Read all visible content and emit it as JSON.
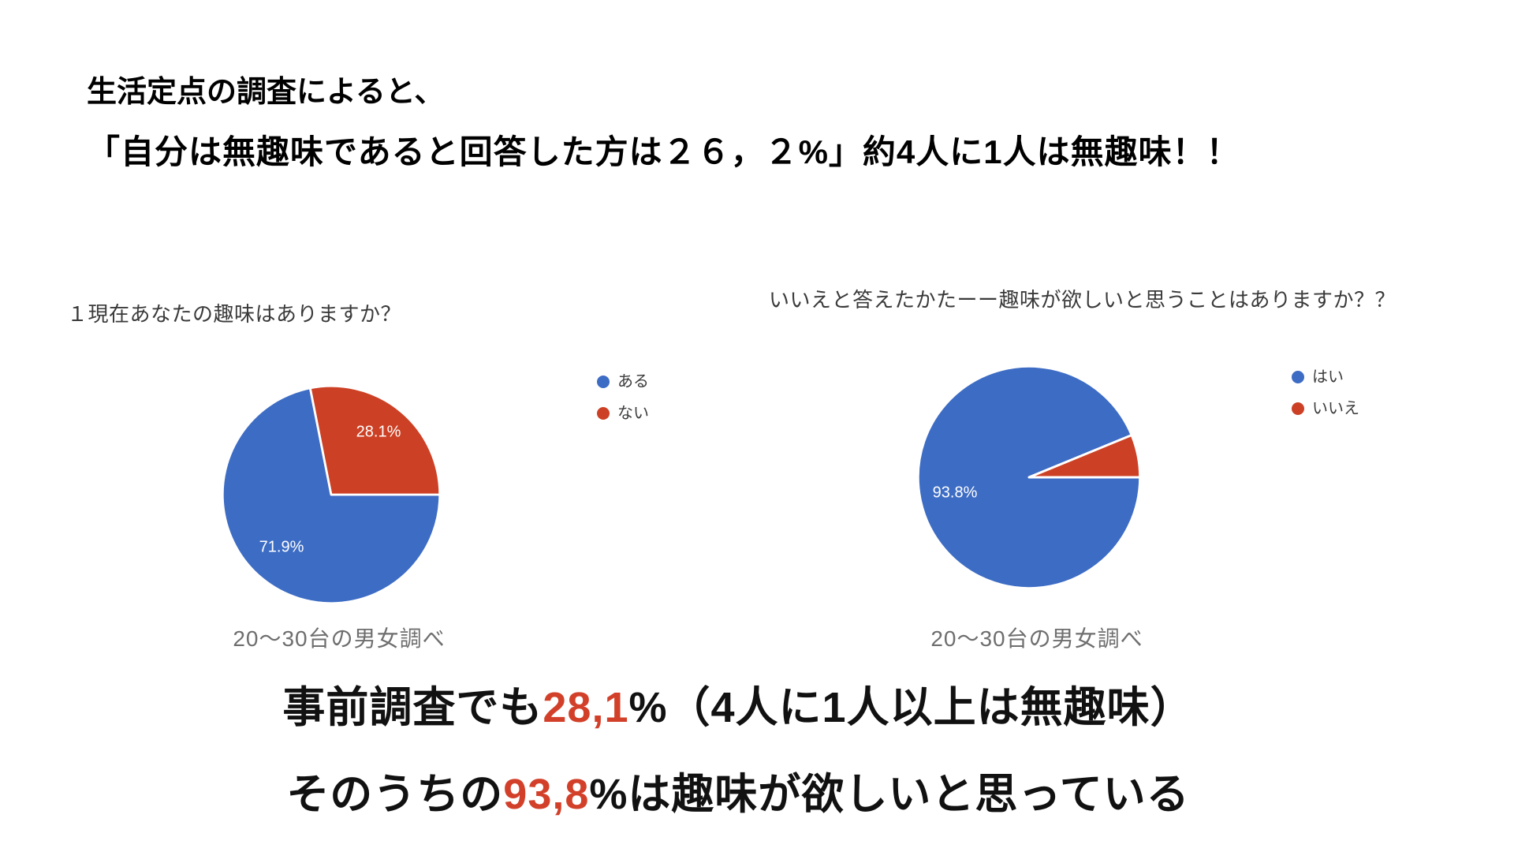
{
  "slide": {
    "background": "#ffffff"
  },
  "heading": {
    "line1": "生活定点の調査によると、",
    "line2": "「自分は無趣味であると回答した方は２６，２%」約4人に1人は無趣味！！"
  },
  "chart_data": [
    {
      "type": "pie",
      "title": "１現在あなたの趣味はありますか？",
      "labels": [
        "ある",
        "ない"
      ],
      "values": [
        71.9,
        28.1
      ],
      "value_labels": [
        "71.9%",
        "28.1%"
      ],
      "colors": [
        "#3d6cc4",
        "#cc4125"
      ],
      "caption": "20〜30台の男女調べ",
      "legend_position": "right",
      "start_angle": "3-oclock",
      "direction": "clockwise"
    },
    {
      "type": "pie",
      "title": "いいえと答えたかたーー趣味が欲しいと思うことはありますか？？",
      "labels": [
        "はい",
        "いいえ"
      ],
      "values": [
        93.8,
        6.2
      ],
      "value_labels": [
        "93.8%",
        ""
      ],
      "colors": [
        "#3d6cc4",
        "#cc4125"
      ],
      "caption": "20〜30台の男女調べ",
      "legend_position": "right",
      "start_angle": "3-oclock",
      "direction": "clockwise"
    }
  ],
  "summary": {
    "line1": {
      "pre": "事前調査でも",
      "highlight": "28,1",
      "unit": "%",
      "post": "（4人に1人以上は無趣味）"
    },
    "line2": {
      "pre": "そのうちの",
      "highlight": "93,8",
      "unit": "%",
      "post": "は趣味が欲しいと思っている"
    }
  },
  "colors": {
    "background": "#ffffff",
    "pie_blue": "#3d6cc4",
    "pie_red": "#cc4125",
    "highlight_red": "#d2402a",
    "heading_text": "#000000",
    "chart_title_text": "#3a3a3a",
    "legend_text": "#3c3c3c",
    "caption_text": "#6e6e6e",
    "pie_label_text": "#ffffff",
    "summary_text": "#111111"
  }
}
